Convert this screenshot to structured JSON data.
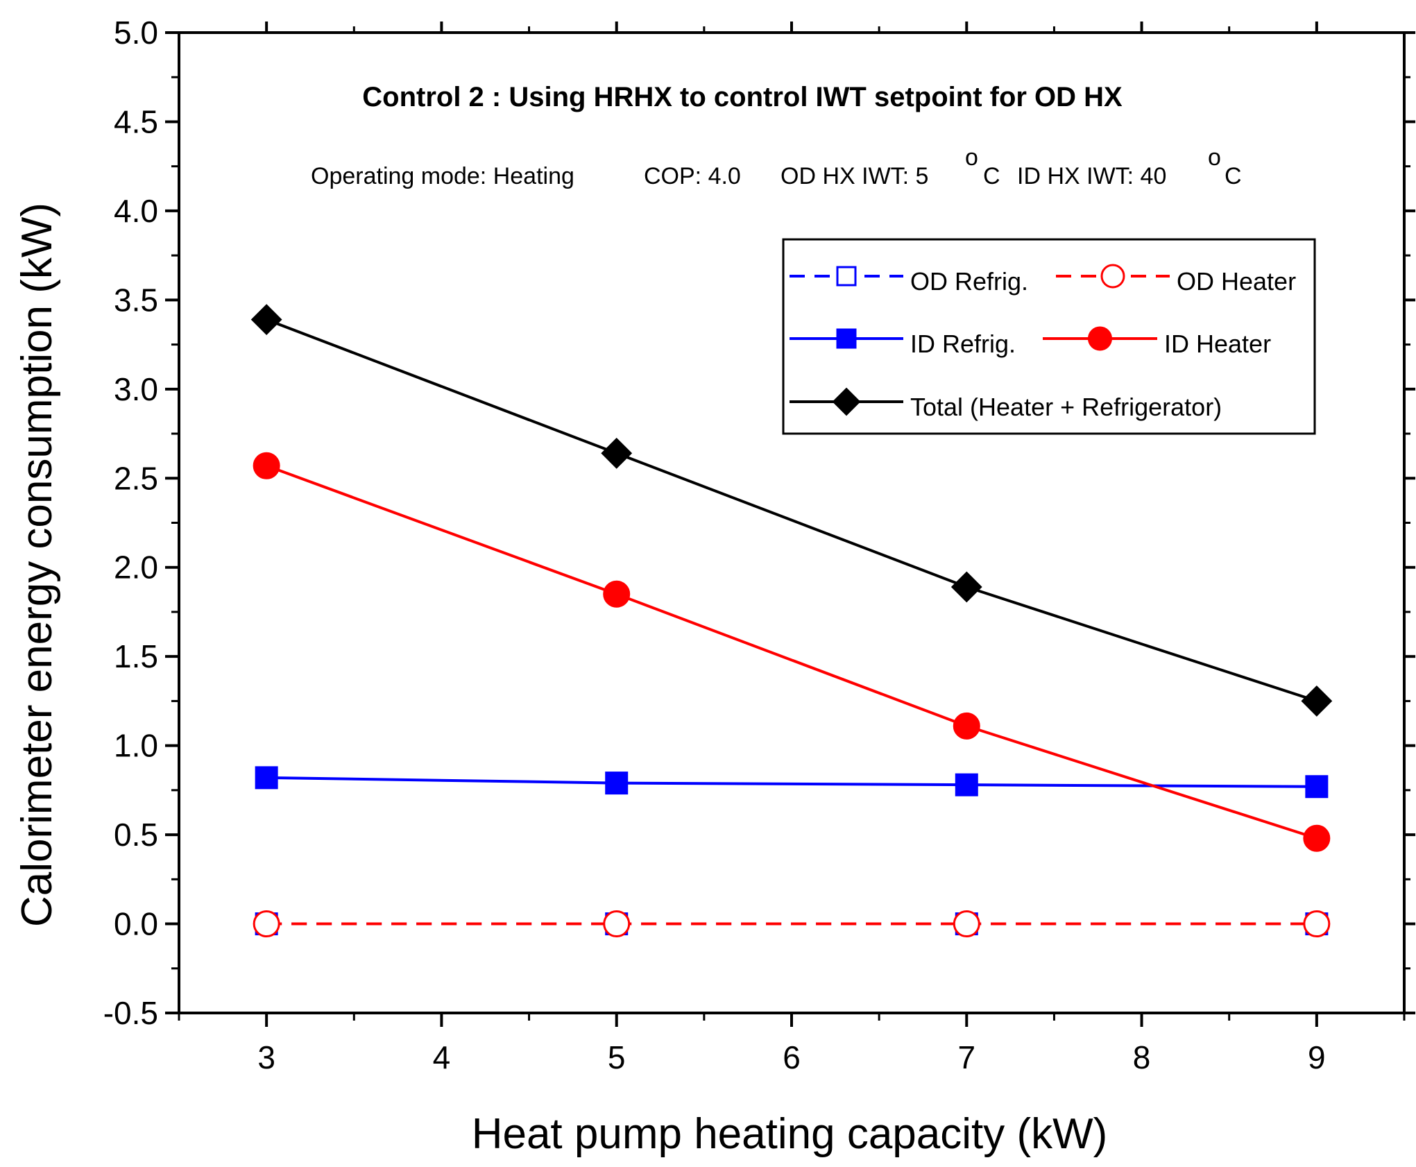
{
  "chart_data": {
    "type": "line",
    "title": "Control 2 : Using HRHX to control IWT setpoint for OD HX",
    "subtitle": {
      "mode": "Operating mode: Heating",
      "cop": "COP: 4.0",
      "od": "OD HX IWT: 5",
      "id": "ID HX IWT: 40",
      "deg": "o",
      "unit": "C"
    },
    "xlabel": "Heat pump heating capacity (kW)",
    "ylabel": "Calorimeter energy consumption (kW)",
    "xlim": [
      2.5,
      9.5
    ],
    "ylim": [
      -0.5,
      5.0
    ],
    "x_ticks": [
      3,
      4,
      5,
      6,
      7,
      8,
      9
    ],
    "y_ticks": [
      "-0.5",
      "0.0",
      "0.5",
      "1.0",
      "1.5",
      "2.0",
      "2.5",
      "3.0",
      "3.5",
      "4.0",
      "4.5",
      "5.0"
    ],
    "grid": false,
    "legend_position": "upper-right",
    "x": [
      3,
      5,
      7,
      9
    ],
    "series": [
      {
        "name": "OD Refrig.",
        "values": [
          0,
          0,
          0,
          0
        ],
        "color": "#0000ff",
        "dash": true,
        "marker": "square",
        "filled": false
      },
      {
        "name": "OD Heater",
        "values": [
          0,
          0,
          0,
          0
        ],
        "color": "#ff0000",
        "dash": true,
        "marker": "circle",
        "filled": false
      },
      {
        "name": "ID Refrig.",
        "values": [
          0.82,
          0.79,
          0.78,
          0.77
        ],
        "color": "#0000ff",
        "dash": false,
        "marker": "square",
        "filled": true
      },
      {
        "name": "ID Heater",
        "values": [
          2.57,
          1.85,
          1.11,
          0.48
        ],
        "color": "#ff0000",
        "dash": false,
        "marker": "circle",
        "filled": true
      },
      {
        "name": "Total (Heater + Refrigerator)",
        "values": [
          3.39,
          2.64,
          1.89,
          1.25
        ],
        "color": "#000000",
        "dash": false,
        "marker": "diamond",
        "filled": true
      }
    ]
  }
}
